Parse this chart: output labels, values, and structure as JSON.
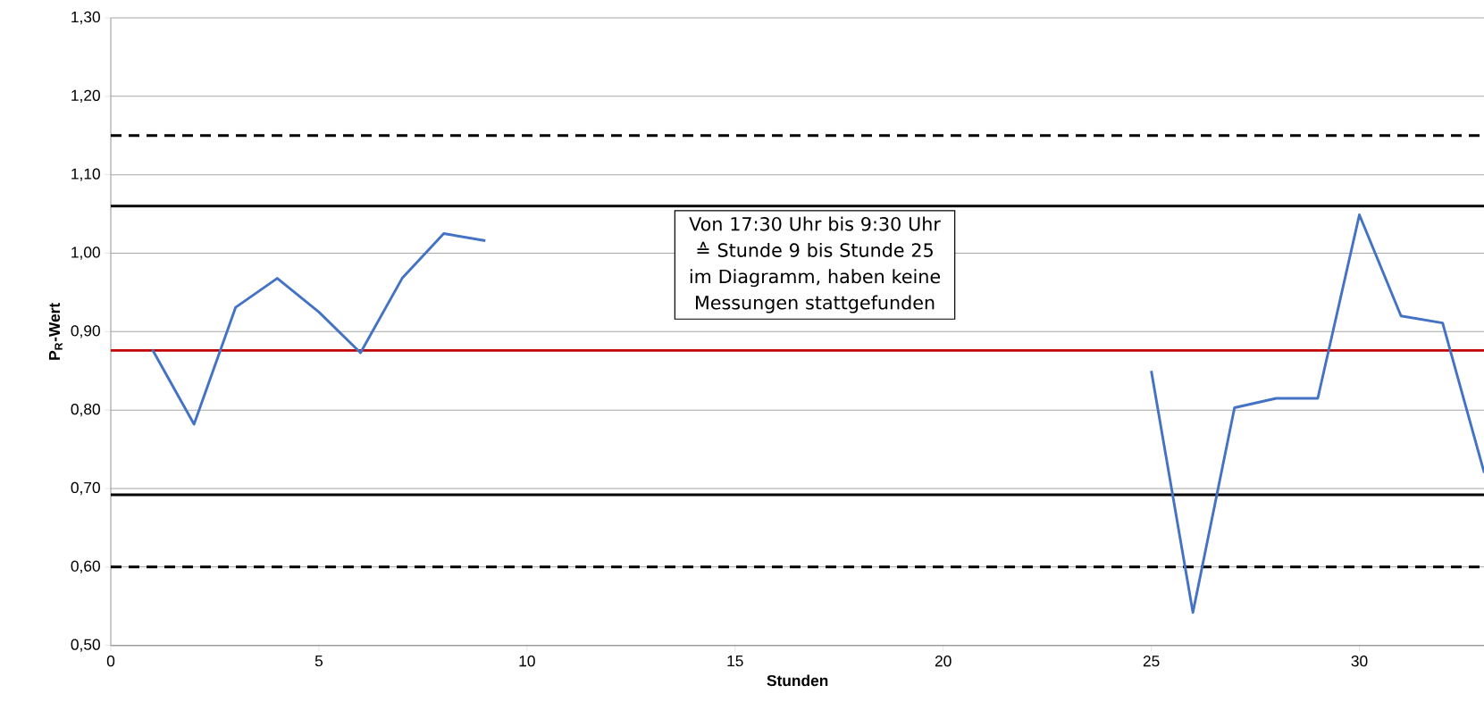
{
  "chart_data": {
    "type": "line",
    "xlabel": "Stunden",
    "ylabel": "**P$_{R}$-Wert**",
    "x": [
      1,
      2,
      3,
      4,
      5,
      6,
      7,
      8,
      9,
      10,
      11,
      12,
      13,
      14,
      15,
      16,
      17,
      18,
      19,
      20,
      21,
      22,
      23,
      24,
      25,
      26,
      27,
      28,
      29,
      30,
      31,
      32,
      33
    ],
    "series": [
      {
        "color": "#4472c4",
        "values": [
          0.877,
          0.782,
          0.931,
          0.968,
          0.925,
          0.873,
          0.968,
          1.025,
          1.016,
          null,
          null,
          null,
          null,
          null,
          null,
          null,
          null,
          null,
          null,
          null,
          null,
          null,
          null,
          null,
          0.85,
          0.542,
          0.803,
          0.815,
          0.815,
          1.049,
          0.92,
          0.911,
          0.72
        ]
      }
    ],
    "xlim": [
      0,
      33
    ],
    "xticks": [
      0,
      5,
      10,
      15,
      20,
      25,
      30
    ],
    "ylim": [
      0.5,
      1.3
    ],
    "yticks": [
      {
        "value": 0.5,
        "label": "0,50"
      },
      {
        "value": 0.6,
        "label": "0,60"
      },
      {
        "value": 0.7,
        "label": "0,70"
      },
      {
        "value": 0.8,
        "label": "0,80"
      },
      {
        "value": 0.9,
        "label": "0,90"
      },
      {
        "value": 1.0,
        "label": "1,00"
      },
      {
        "value": 1.1,
        "label": "1,10"
      },
      {
        "value": 1.2,
        "label": "1,20"
      },
      {
        "value": 1.3,
        "label": "1,30"
      }
    ],
    "grid": "y",
    "marker": "none",
    "line_style": "solid",
    "ref_lines": [
      {
        "axis": "y",
        "value": 1.15,
        "color": "#000000",
        "line_style": "dashed"
      },
      {
        "axis": "y",
        "value": 1.06,
        "color": "#000000",
        "line_style": "solid"
      },
      {
        "axis": "y",
        "value": 0.876,
        "color": "#c00000",
        "line_style": "solid"
      },
      {
        "axis": "y",
        "value": 0.692,
        "color": "#000000",
        "line_style": "solid"
      },
      {
        "axis": "y",
        "value": 0.6,
        "color": "#000000",
        "line_style": "dashed"
      }
    ],
    "annotations": [
      "Von  17:30 Uhr bis 9:30 Uhr ≙ Stunde 9 bis Stunde 25 im Diagramm, haben keine Messungen stattgefunden"
    ]
  }
}
